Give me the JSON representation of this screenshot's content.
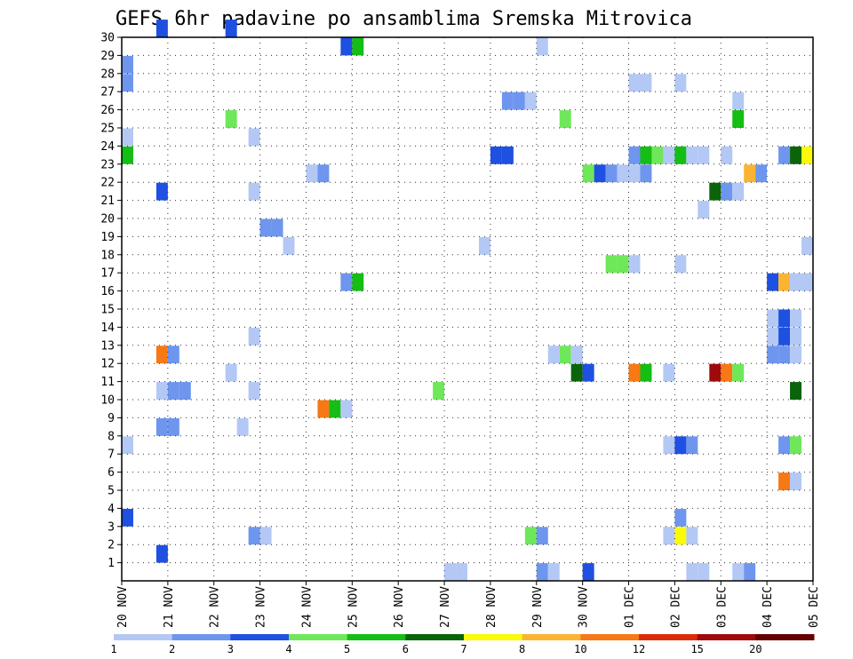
{
  "chart_data": {
    "type": "heatmap",
    "title": "GEFS 6hr padavine po ansamblima Sremska Mitrovica",
    "x_tick_labels": [
      "20 NOV",
      "21 NOV",
      "22 NOV",
      "23 NOV",
      "24 NOV",
      "25 NOV",
      "26 NOV",
      "27 NOV",
      "28 NOV",
      "29 NOV",
      "30 NOV",
      "01 DEC",
      "02 DEC",
      "03 DEC",
      "04 DEC",
      "05 DEC"
    ],
    "y_tick_labels": [
      "1",
      "2",
      "3",
      "4",
      "5",
      "6",
      "7",
      "8",
      "9",
      "10",
      "11",
      "12",
      "13",
      "14",
      "15",
      "16",
      "17",
      "18",
      "19",
      "20",
      "21",
      "22",
      "23",
      "24",
      "25",
      "26",
      "27",
      "28",
      "29",
      "30"
    ],
    "x_range_steps": [
      0,
      60
    ],
    "y_range_members": [
      0,
      30
    ],
    "grid": true,
    "colorbar": {
      "tick_labels": [
        "1",
        "2",
        "3",
        "4",
        "5",
        "6",
        "7",
        "8",
        "10",
        "12",
        "15",
        "20"
      ],
      "colors": [
        "#b4c8f5",
        "#6e96ee",
        "#1e50e1",
        "#6ee85a",
        "#14be14",
        "#0a640a",
        "#fafa0a",
        "#fab432",
        "#f77814",
        "#dc2d0a",
        "#a00a0a",
        "#640000"
      ]
    },
    "cells_note": "each cell: [step (0-based 6h step from 20 NOV 00z), member, color class index (0 = 1-2 mm ... 11 = >20 mm)]",
    "cells": [
      [
        0,
        23,
        4
      ],
      [
        0,
        24,
        0
      ],
      [
        0,
        27,
        1
      ],
      [
        0,
        28,
        1
      ],
      [
        0,
        7,
        0
      ],
      [
        0,
        3,
        2
      ],
      [
        3,
        8,
        1
      ],
      [
        4,
        8,
        1
      ],
      [
        3,
        10,
        0
      ],
      [
        4,
        10,
        1
      ],
      [
        5,
        10,
        1
      ],
      [
        3,
        12,
        8
      ],
      [
        4,
        12,
        1
      ],
      [
        3,
        30,
        2
      ],
      [
        3,
        21,
        2
      ],
      [
        3,
        1,
        2
      ],
      [
        9,
        25,
        3
      ],
      [
        9,
        11,
        0
      ],
      [
        10,
        8,
        0
      ],
      [
        9,
        30,
        2
      ],
      [
        11,
        24,
        0
      ],
      [
        11,
        13,
        0
      ],
      [
        11,
        10,
        0
      ],
      [
        11,
        21,
        0
      ],
      [
        11,
        2,
        1
      ],
      [
        12,
        2,
        0
      ],
      [
        12,
        19,
        1
      ],
      [
        13,
        19,
        1
      ],
      [
        14,
        18,
        0
      ],
      [
        16,
        22,
        0
      ],
      [
        17,
        22,
        1
      ],
      [
        17,
        9,
        8
      ],
      [
        18,
        9,
        4
      ],
      [
        19,
        9,
        0
      ],
      [
        19,
        29,
        2
      ],
      [
        20,
        29,
        4
      ],
      [
        19,
        16,
        1
      ],
      [
        20,
        16,
        4
      ],
      [
        27,
        10,
        3
      ],
      [
        28,
        0,
        0
      ],
      [
        29,
        0,
        0
      ],
      [
        31,
        18,
        0
      ],
      [
        32,
        23,
        2
      ],
      [
        33,
        23,
        2
      ],
      [
        33,
        26,
        1
      ],
      [
        34,
        26,
        1
      ],
      [
        35,
        26,
        0
      ],
      [
        36,
        29,
        0
      ],
      [
        35,
        2,
        3
      ],
      [
        36,
        2,
        1
      ],
      [
        36,
        0,
        1
      ],
      [
        37,
        0,
        0
      ],
      [
        37,
        12,
        0
      ],
      [
        38,
        12,
        3
      ],
      [
        38,
        25,
        3
      ],
      [
        39,
        12,
        0
      ],
      [
        39,
        11,
        5
      ],
      [
        40,
        11,
        2
      ],
      [
        40,
        0,
        2
      ],
      [
        40,
        22,
        3
      ],
      [
        41,
        22,
        2
      ],
      [
        42,
        22,
        1
      ],
      [
        43,
        22,
        0
      ],
      [
        44,
        22,
        0
      ],
      [
        45,
        22,
        1
      ],
      [
        42,
        17,
        3
      ],
      [
        43,
        17,
        3
      ],
      [
        44,
        17,
        0
      ],
      [
        44,
        27,
        0
      ],
      [
        45,
        27,
        0
      ],
      [
        44,
        23,
        1
      ],
      [
        45,
        23,
        4
      ],
      [
        46,
        23,
        3
      ],
      [
        47,
        23,
        0
      ],
      [
        48,
        23,
        4
      ],
      [
        49,
        23,
        0
      ],
      [
        50,
        23,
        0
      ],
      [
        52,
        23,
        0
      ],
      [
        48,
        27,
        0
      ],
      [
        48,
        17,
        0
      ],
      [
        50,
        20,
        0
      ],
      [
        44,
        11,
        8
      ],
      [
        45,
        11,
        4
      ],
      [
        47,
        11,
        0
      ],
      [
        47,
        2,
        0
      ],
      [
        48,
        2,
        6
      ],
      [
        49,
        2,
        0
      ],
      [
        48,
        3,
        1
      ],
      [
        47,
        7,
        0
      ],
      [
        48,
        7,
        2
      ],
      [
        49,
        7,
        1
      ],
      [
        49,
        0,
        0
      ],
      [
        50,
        0,
        0
      ],
      [
        51,
        11,
        10
      ],
      [
        52,
        11,
        8
      ],
      [
        53,
        11,
        3
      ],
      [
        51,
        21,
        5
      ],
      [
        52,
        21,
        1
      ],
      [
        53,
        21,
        0
      ],
      [
        53,
        26,
        0
      ],
      [
        53,
        25,
        4
      ],
      [
        54,
        22,
        7
      ],
      [
        55,
        22,
        1
      ],
      [
        53,
        0,
        0
      ],
      [
        54,
        0,
        1
      ],
      [
        56,
        16,
        2
      ],
      [
        57,
        16,
        7
      ],
      [
        58,
        16,
        0
      ],
      [
        59,
        16,
        0
      ],
      [
        56,
        14,
        0
      ],
      [
        57,
        14,
        2
      ],
      [
        58,
        14,
        0
      ],
      [
        56,
        13,
        0
      ],
      [
        57,
        13,
        2
      ],
      [
        58,
        13,
        0
      ],
      [
        56,
        12,
        1
      ],
      [
        57,
        12,
        1
      ],
      [
        58,
        12,
        0
      ],
      [
        57,
        23,
        1
      ],
      [
        58,
        23,
        5
      ],
      [
        59,
        23,
        6
      ],
      [
        58,
        10,
        5
      ],
      [
        57,
        7,
        1
      ],
      [
        58,
        7,
        3
      ],
      [
        57,
        5,
        8
      ],
      [
        58,
        5,
        0
      ],
      [
        59,
        18,
        0
      ]
    ]
  }
}
